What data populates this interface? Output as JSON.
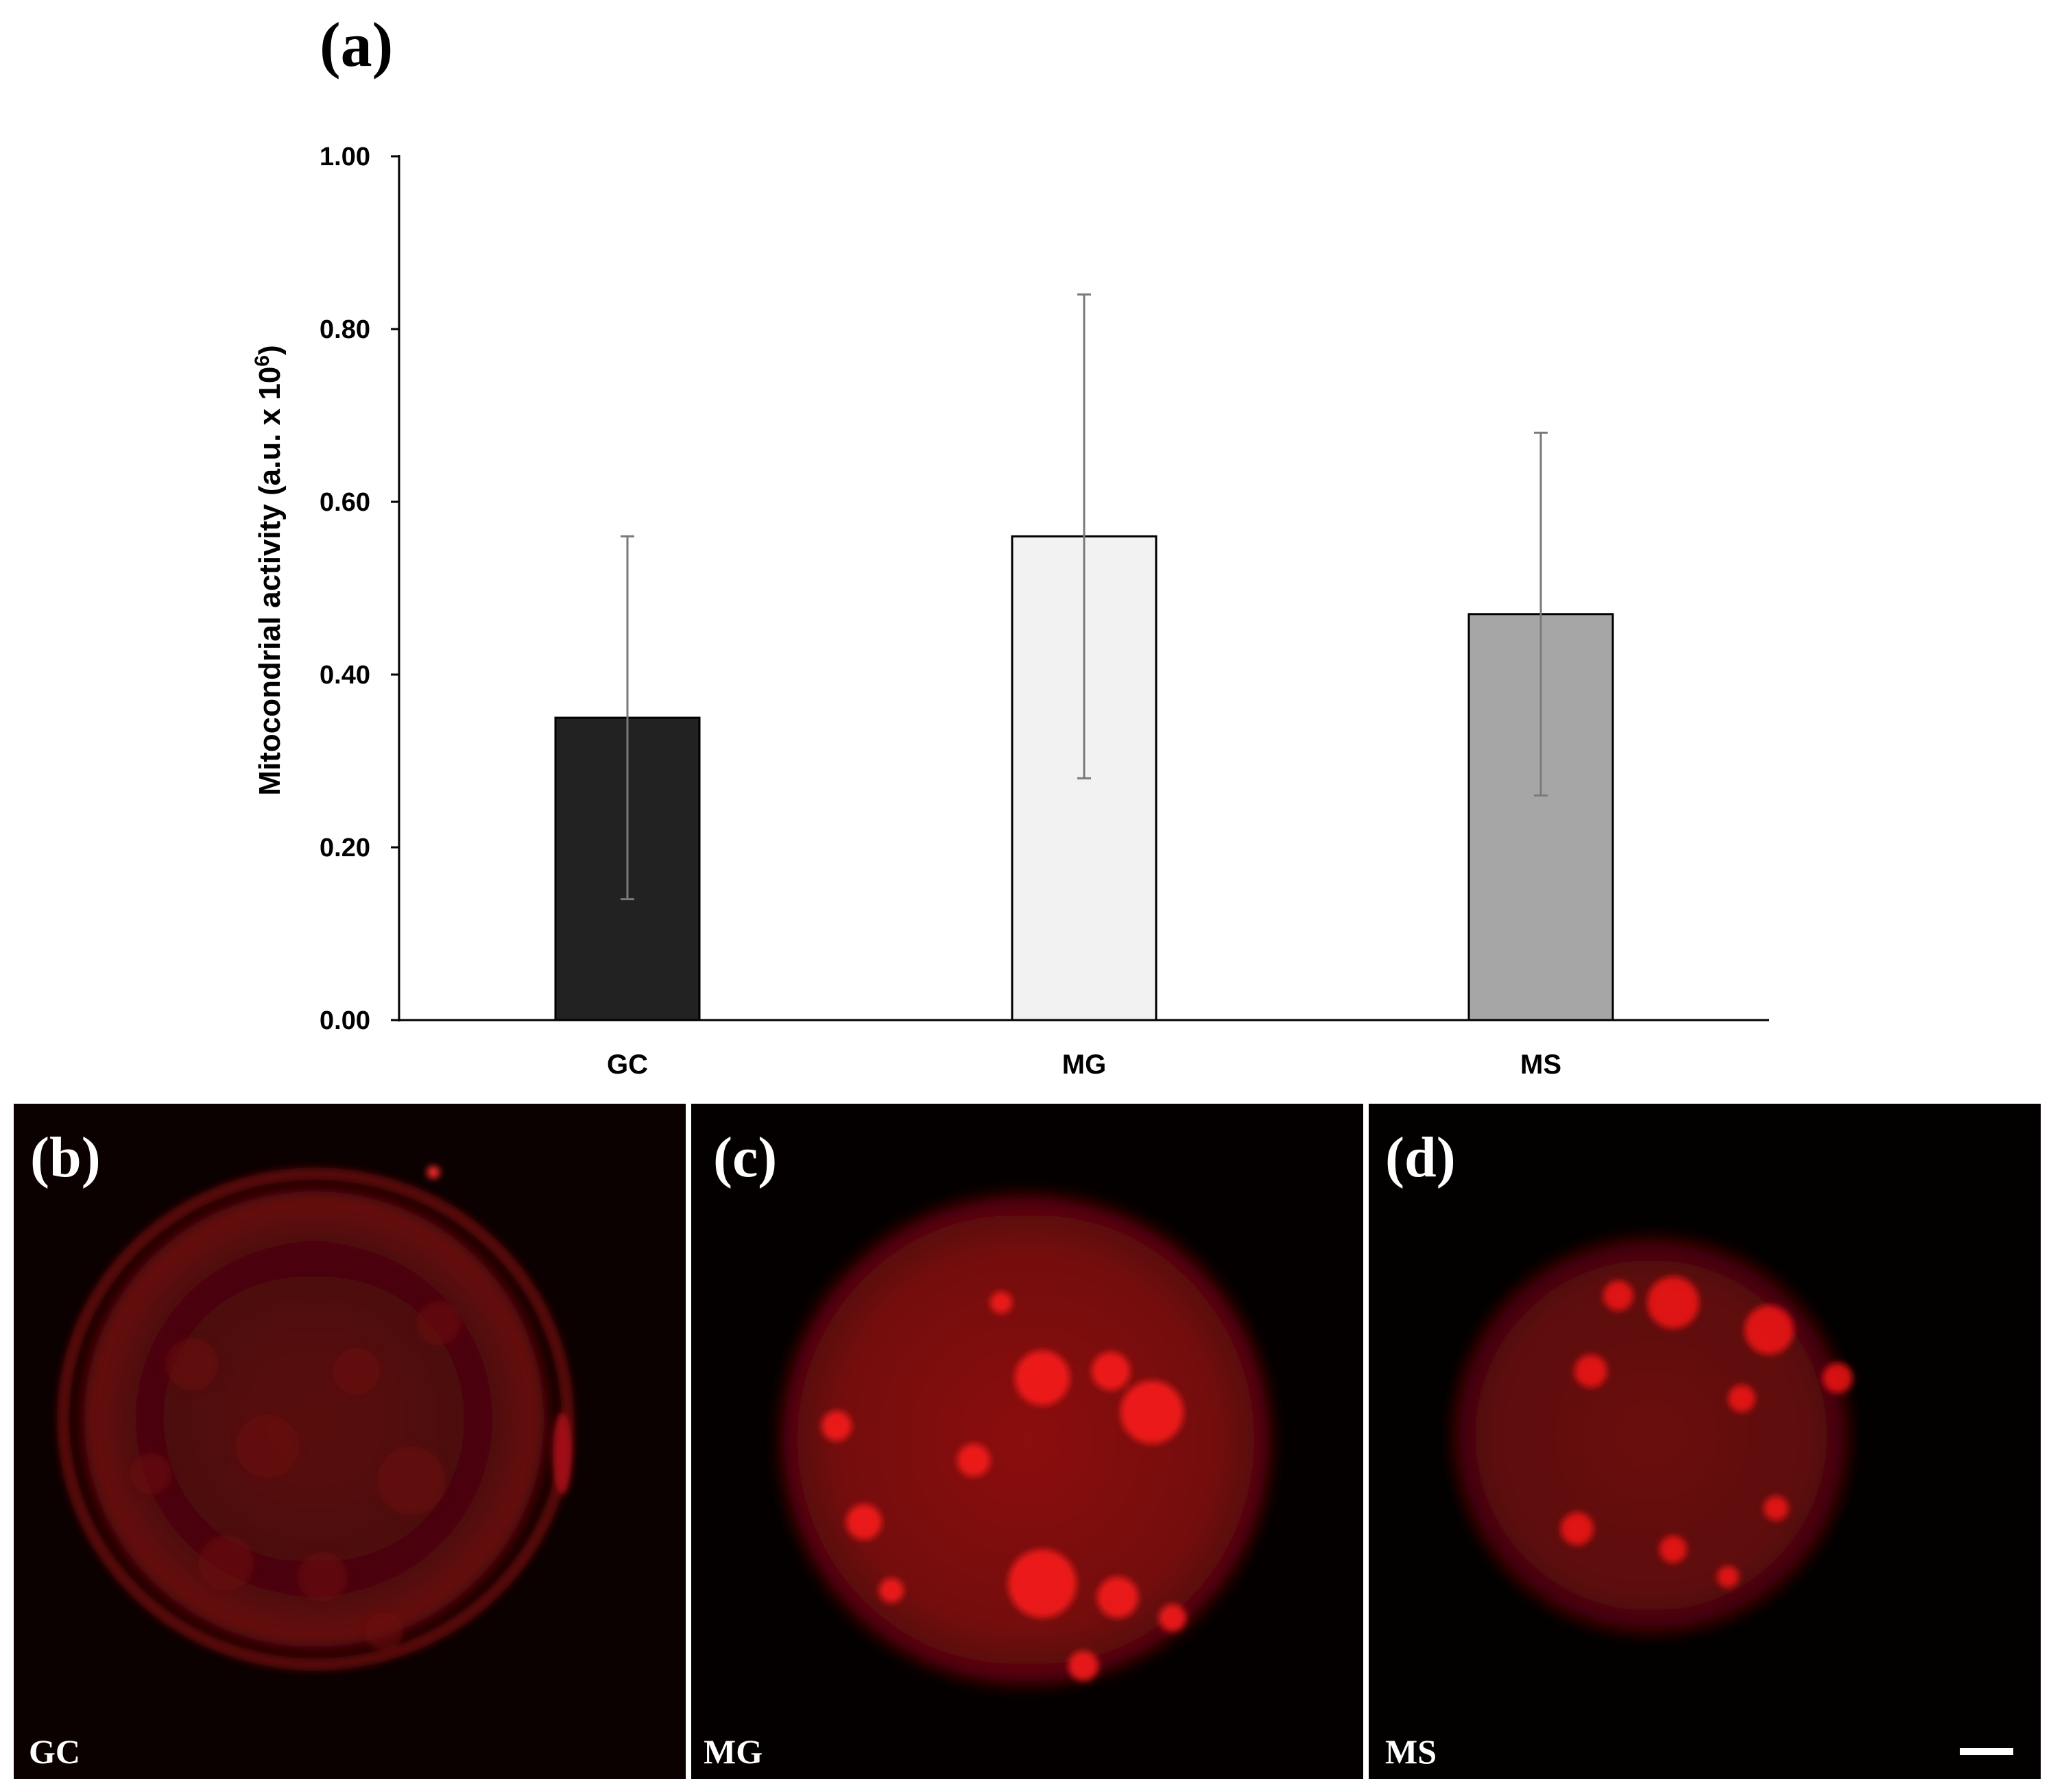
{
  "chart_data": {
    "type": "bar",
    "panel_label": "(a)",
    "title": "",
    "xlabel": "",
    "ylabel": "Mitocondrial activity (a.u. x 10",
    "ylabel_superscript": "6",
    "ylabel_close": ")",
    "ylim": [
      0,
      1.0
    ],
    "yticks": [
      "0.00",
      "0.20",
      "0.40",
      "0.60",
      "0.80",
      "1.00"
    ],
    "categories": [
      "GC",
      "MG",
      "MS"
    ],
    "values": [
      0.35,
      0.56,
      0.47
    ],
    "errors": [
      0.21,
      0.28,
      0.21
    ],
    "colors": [
      "#222222",
      "#f2f2f2",
      "#a6a6a6"
    ],
    "grid": false,
    "legend": "none"
  },
  "images": [
    {
      "letter": "(b)",
      "caption": "GC",
      "tint": "#c0141c",
      "intensity": "dim"
    },
    {
      "letter": "(c)",
      "caption": "MG",
      "tint": "#e01018",
      "intensity": "bright"
    },
    {
      "letter": "(d)",
      "caption": "MS",
      "tint": "#d81018",
      "intensity": "medium"
    }
  ],
  "scale_bar": {
    "color": "#ffffff"
  }
}
